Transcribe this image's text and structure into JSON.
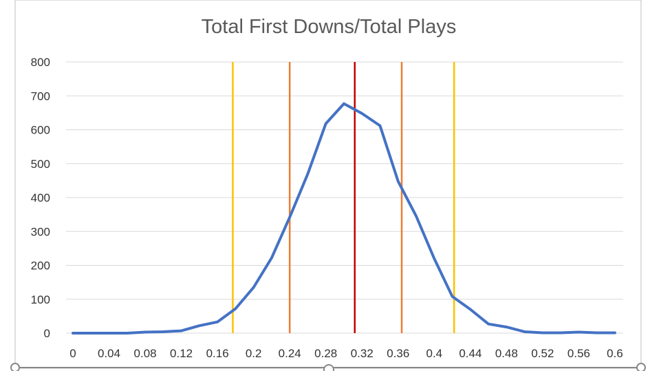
{
  "chart_data": {
    "type": "line",
    "title": "Total First Downs/Total Plays",
    "xlabel": "",
    "ylabel": "",
    "xlim": [
      0,
      0.6
    ],
    "ylim": [
      0,
      800
    ],
    "grid": true,
    "legend": "none",
    "x_tick_labels": [
      "0",
      "0.04",
      "0.08",
      "0.12",
      "0.16",
      "0.2",
      "0.24",
      "0.28",
      "0.32",
      "0.36",
      "0.4",
      "0.44",
      "0.48",
      "0.52",
      "0.56",
      "0.6"
    ],
    "y_tick_labels": [
      "0",
      "100",
      "200",
      "300",
      "400",
      "500",
      "600",
      "700",
      "800"
    ],
    "series": [
      {
        "color": "#4472c4",
        "x": [
          0,
          0.02,
          0.04,
          0.06,
          0.08,
          0.1,
          0.12,
          0.14,
          0.16,
          0.18,
          0.2,
          0.22,
          0.24,
          0.26,
          0.28,
          0.3,
          0.32,
          0.34,
          0.36,
          0.38,
          0.4,
          0.42,
          0.44,
          0.46,
          0.48,
          0.5,
          0.52,
          0.54,
          0.56,
          0.58,
          0.6
        ],
        "y": [
          0,
          0,
          0,
          0,
          3,
          4,
          7,
          22,
          33,
          72,
          135,
          222,
          342,
          470,
          618,
          677,
          648,
          612,
          448,
          345,
          220,
          108,
          70,
          27,
          18,
          4,
          1,
          1,
          3,
          1,
          1
        ]
      }
    ],
    "vertical_lines": [
      {
        "x": 0.177,
        "color": "#ffc000"
      },
      {
        "x": 0.24,
        "color": "#ed7d31"
      },
      {
        "x": 0.312,
        "color": "#c00000"
      },
      {
        "x": 0.364,
        "color": "#ed7d31"
      },
      {
        "x": 0.422,
        "color": "#ffc000"
      }
    ]
  }
}
